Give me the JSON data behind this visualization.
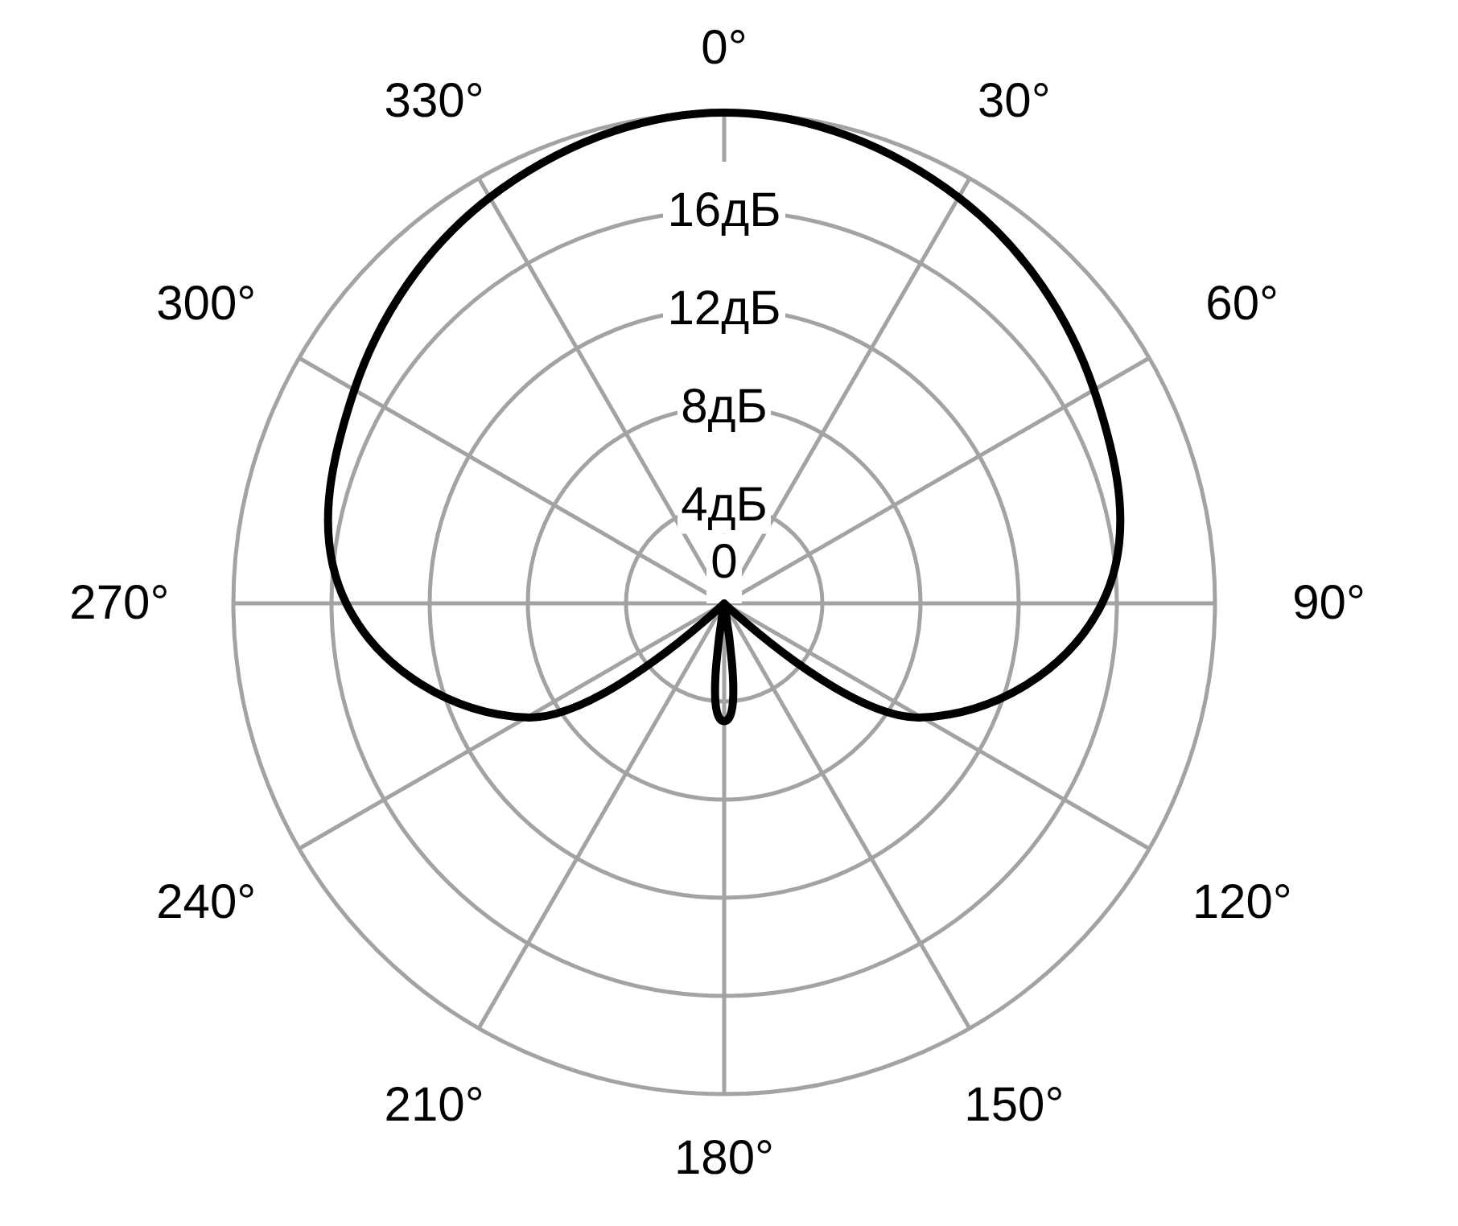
{
  "chart_data": {
    "type": "radar",
    "categories": [
      "0°",
      "30°",
      "60°",
      "90°",
      "120°",
      "150°",
      "180°",
      "210°",
      "240°",
      "270°",
      "300°",
      "330°"
    ],
    "ylim": [
      0,
      20
    ],
    "yticks": [
      0,
      {
        "value": 4,
        "label": "4дБ"
      },
      {
        "value": 8,
        "label": "8дБ"
      },
      {
        "value": 12,
        "label": "12дБ"
      },
      {
        "value": 16,
        "label": "16дБ"
      }
    ],
    "grid": true,
    "series": [
      {
        "color": "#000000",
        "values": [
          20,
          19.1,
          17.4,
          15.4,
          9.3,
          0,
          4.8,
          0,
          9.3,
          15.4,
          17.4,
          19.1
        ]
      }
    ]
  }
}
